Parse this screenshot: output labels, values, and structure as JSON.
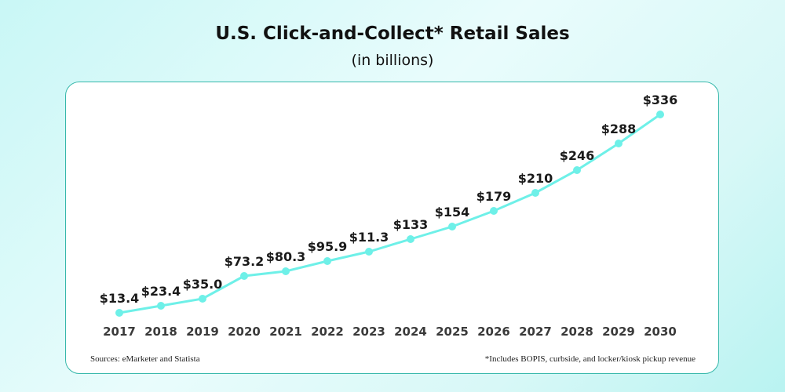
{
  "chart_data": {
    "type": "line",
    "title": "U.S. Click-and-Collect* Retail Sales",
    "subtitle": "(in billions)",
    "categories": [
      "2017",
      "2018",
      "2019",
      "2020",
      "2021",
      "2022",
      "2023",
      "2024",
      "2025",
      "2026",
      "2027",
      "2028",
      "2029",
      "2030"
    ],
    "values": [
      13.4,
      23.4,
      35.0,
      73.2,
      80.3,
      95.9,
      11.3,
      133,
      154,
      179,
      210,
      246,
      288,
      336
    ],
    "data_labels": [
      "$13.4",
      "$23.4",
      "$35.0",
      "$73.2",
      "$80.3",
      "$95.9",
      "$11.3",
      "$133",
      "$154",
      "$179",
      "$210",
      "$246",
      "$288",
      "$336"
    ],
    "xlabel": "",
    "ylabel": "",
    "grid": false,
    "line_color": "#6ef0e8",
    "source": "Sources: eMarketer and Statista",
    "footnote": "*Includes BOPIS, curbside, and locker/kiosk pickup revenue"
  }
}
